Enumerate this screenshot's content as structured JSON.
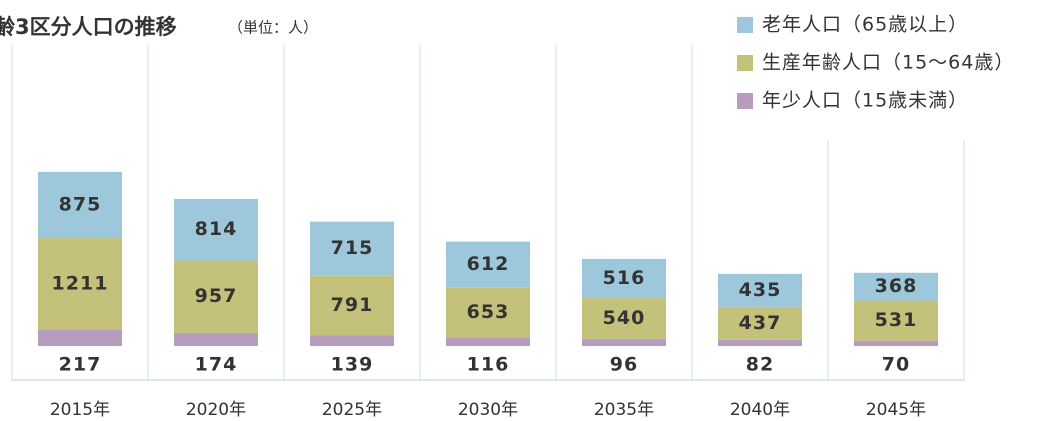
{
  "chart_data": {
    "type": "stacked_bar",
    "title": "齢3区分人口の推移",
    "subtitle": "（単位：人）",
    "categories": [
      "2015年",
      "2020年",
      "2025年",
      "2030年",
      "2035年",
      "2040年",
      "2045年"
    ],
    "series": [
      {
        "name": "老年人口（65歳以上）",
        "color": "#9dc8dc",
        "values": [
          875,
          814,
          715,
          612,
          516,
          435,
          368
        ]
      },
      {
        "name": "生産年齢人口（15～64歳）",
        "color": "#c4c27a",
        "values": [
          1211,
          957,
          791,
          653,
          540,
          437,
          531
        ]
      },
      {
        "name": "年少人口（15歳未満）",
        "color": "#b69cbf",
        "values": [
          217,
          174,
          139,
          116,
          96,
          82,
          70
        ]
      }
    ],
    "legend": "top-right"
  }
}
